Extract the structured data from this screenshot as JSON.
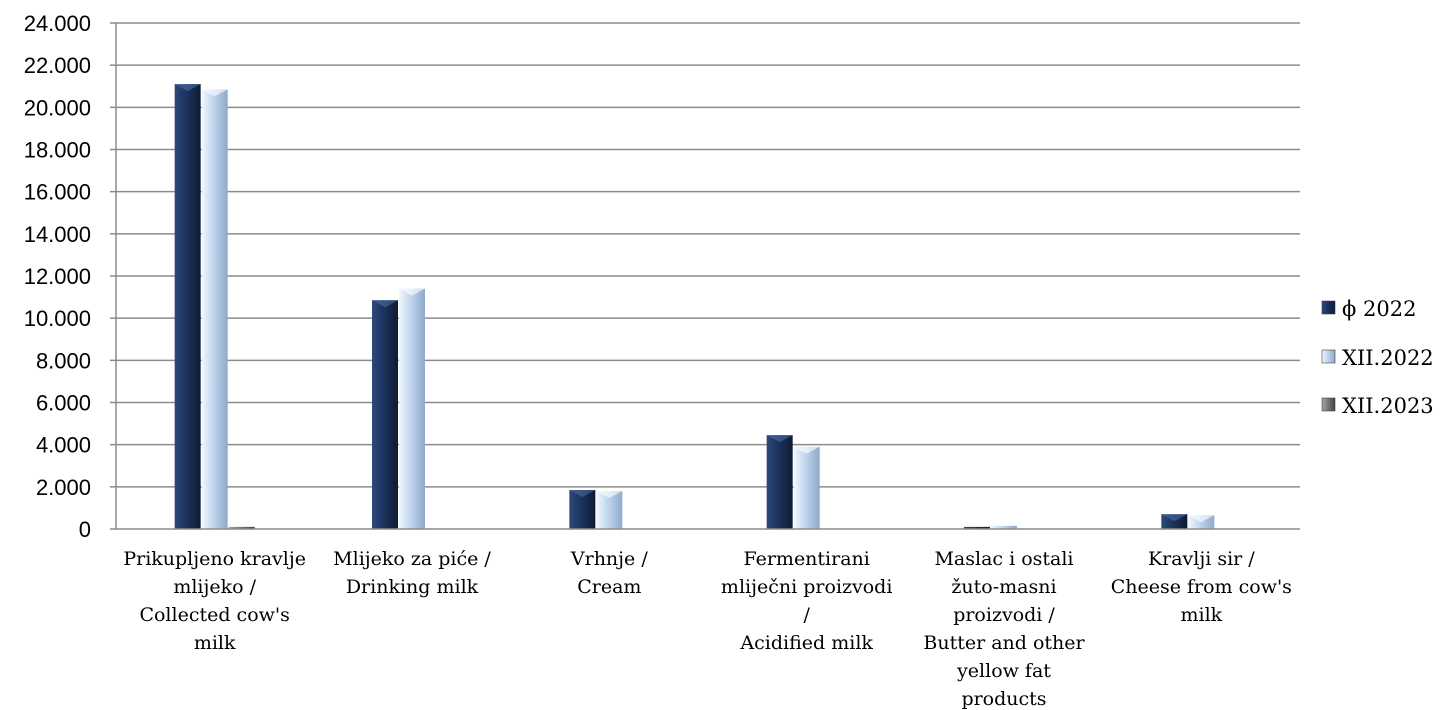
{
  "chart_data": {
    "type": "bar",
    "categories": [
      [
        "Prikupljeno kravlje",
        "mlijeko /",
        "Collected cow's",
        "milk"
      ],
      [
        "Mlijeko za piće /",
        "Drinking milk"
      ],
      [
        "Vrhnje /",
        "Cream"
      ],
      [
        "Fermentirani",
        "mliječni proizvodi",
        "/",
        "Acidified milk"
      ],
      [
        "Maslac i ostali",
        "žuto-masni",
        "proizvodi /",
        "Butter and other",
        "yellow fat",
        "products"
      ],
      [
        "Kravlji sir /",
        "Cheese from cow's",
        "milk"
      ]
    ],
    "series": [
      {
        "name": "ϕ 2022",
        "values": [
          21100,
          10850,
          1850,
          4450,
          100,
          700
        ],
        "color": "#1f3864"
      },
      {
        "name": "XII.2022",
        "values": [
          20850,
          11400,
          1800,
          3900,
          150,
          650
        ],
        "color": "#c5d9f1"
      },
      {
        "name": "XII.2023",
        "values": [
          100,
          0,
          0,
          0,
          0,
          0
        ],
        "color": "#7f7f7f"
      }
    ],
    "ylim": [
      0,
      24000
    ],
    "yticks": [
      "0",
      "2.000",
      "4.000",
      "6.000",
      "8.000",
      "10.000",
      "12.000",
      "14.000",
      "16.000",
      "18.000",
      "20.000",
      "22.000",
      "24.000"
    ],
    "grid": true,
    "legend_position": "right",
    "title": "",
    "xlabel": "",
    "ylabel": ""
  }
}
